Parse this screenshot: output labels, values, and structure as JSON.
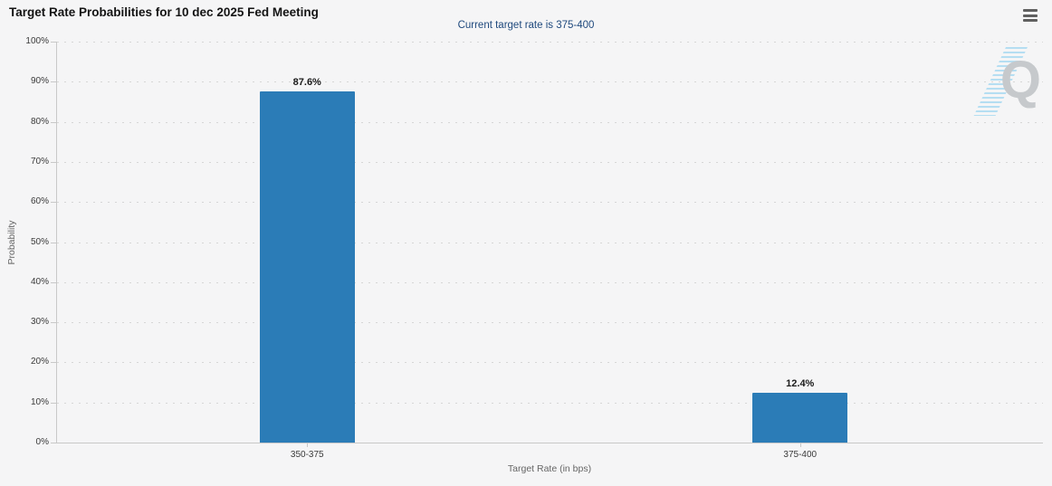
{
  "header": {
    "title": "Target Rate Probabilities for 10 dec 2025 Fed Meeting",
    "subtitle": "Current target rate is 375-400",
    "menu_icon": "hamburger-export-menu"
  },
  "watermark": {
    "letter": "Q"
  },
  "chart_data": {
    "type": "bar",
    "title": "Target Rate Probabilities for 10 dec 2025 Fed Meeting",
    "subtitle": "Current target rate is 375-400",
    "categories": [
      "350-375",
      "375-400"
    ],
    "values": [
      87.6,
      12.4
    ],
    "value_labels": [
      "87.6%",
      "12.4%"
    ],
    "xlabel": "Target Rate (in bps)",
    "ylabel": "Probability",
    "ylim": [
      0,
      100
    ],
    "ytick_step": 10,
    "ytick_labels": [
      "0%",
      "10%",
      "20%",
      "30%",
      "40%",
      "50%",
      "60%",
      "70%",
      "80%",
      "90%",
      "100%"
    ],
    "grid": "horizontal-dotted",
    "legend": "none",
    "colors": {
      "bar": "#2b7cb7",
      "background": "#f5f5f6",
      "title": "#141414",
      "subtitle": "#1f497d",
      "axis_label": "#3a3a3a",
      "axis_title": "#666666",
      "grid": "#d6d6d6",
      "axis_line": "#c8c8c8",
      "watermark_letter": "#c6c9cc",
      "watermark_bolt": "#aedcf2"
    }
  }
}
